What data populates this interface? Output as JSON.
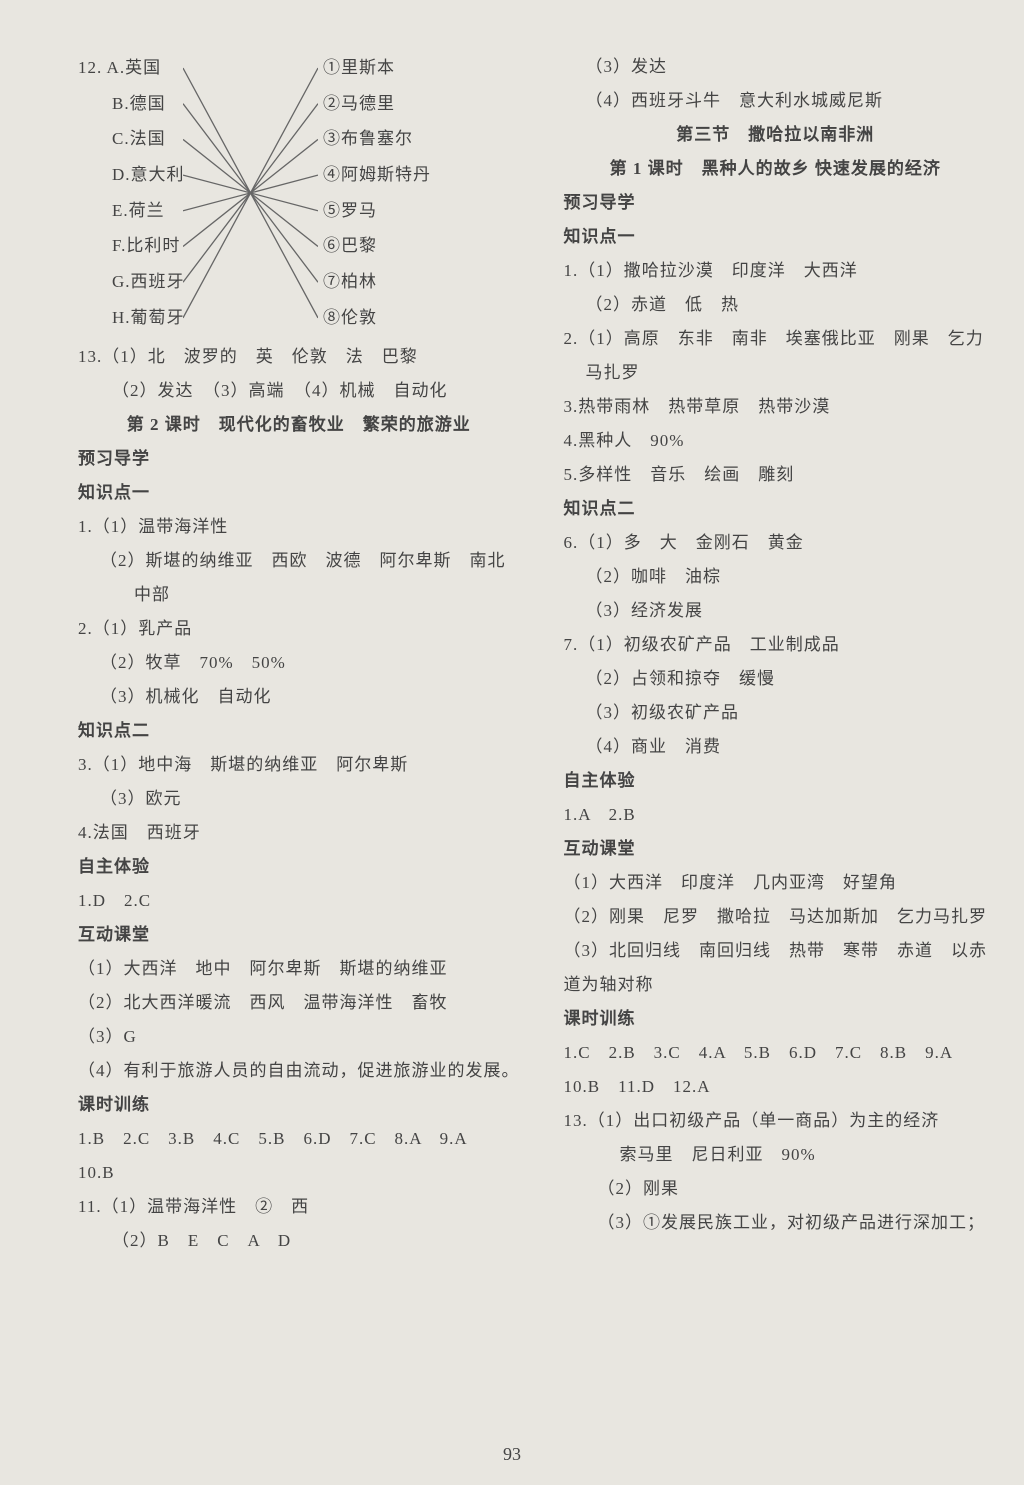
{
  "page_number": "93",
  "colors": {
    "bg": "#e8e6e0",
    "text": "#444444",
    "line": "#666666",
    "divider": "#999999"
  },
  "fontsize": 17,
  "lineheight": 2.0,
  "q12": {
    "left": [
      "12. A.英国",
      "B.德国",
      "C.法国",
      "D.意大利",
      "E.荷兰",
      "F.比利时",
      "G.西班牙",
      "H.葡萄牙"
    ],
    "right": [
      "①里斯本",
      "②马德里",
      "③布鲁塞尔",
      "④阿姆斯特丹",
      "⑤罗马",
      "⑥巴黎",
      "⑦柏林",
      "⑧伦敦"
    ],
    "connections": [
      [
        0,
        7
      ],
      [
        1,
        6
      ],
      [
        2,
        5
      ],
      [
        3,
        4
      ],
      [
        4,
        3
      ],
      [
        5,
        2
      ],
      [
        6,
        1
      ],
      [
        7,
        0
      ]
    ]
  },
  "left_lines": [
    {
      "t": "13.（1）北　波罗的　英　伦敦　法　巴黎"
    },
    {
      "t": "（2）发达　（3）高端　（4）机械　自动化",
      "cls": "indent1"
    },
    {
      "t": "第 2 课时　现代化的畜牧业　繁荣的旅游业",
      "cls": "bold center"
    },
    {
      "t": "预习导学",
      "cls": "bold"
    },
    {
      "t": "知识点一",
      "cls": "bold"
    },
    {
      "t": "1.（1）温带海洋性"
    },
    {
      "t": "（2）斯堪的纳维亚　西欧　波德　阿尔卑斯　南北",
      "cls": "indent3"
    },
    {
      "t": "中部",
      "cls": "indent2"
    },
    {
      "t": "2.（1）乳产品"
    },
    {
      "t": "（2）牧草　70%　50%",
      "cls": "indent3"
    },
    {
      "t": "（3）机械化　自动化",
      "cls": "indent3"
    },
    {
      "t": "知识点二",
      "cls": "bold"
    },
    {
      "t": "3.（1）地中海　斯堪的纳维亚　阿尔卑斯"
    },
    {
      "t": "（3）欧元",
      "cls": "indent3"
    },
    {
      "t": "4.法国　西班牙"
    },
    {
      "t": "自主体验",
      "cls": "bold"
    },
    {
      "t": "1.D　2.C"
    },
    {
      "t": "互动课堂",
      "cls": "bold"
    },
    {
      "t": "（1）大西洋　地中　阿尔卑斯　斯堪的纳维亚"
    },
    {
      "t": "（2）北大西洋暖流　西风　温带海洋性　畜牧"
    },
    {
      "t": "（3）G"
    },
    {
      "t": "（4）有利于旅游人员的自由流动，促进旅游业的发展。"
    },
    {
      "t": "课时训练",
      "cls": "bold"
    },
    {
      "t": "1.B　2.C　3.B　4.C　5.B　6.D　7.C　8.A　9.A"
    },
    {
      "t": "10.B"
    },
    {
      "t": "11.（1）温带海洋性　②　西"
    },
    {
      "t": "（2）B　E　C　A　D",
      "cls": "indent1"
    }
  ],
  "right_lines": [
    {
      "t": "（3）发达",
      "cls": "indent3"
    },
    {
      "t": "（4）西班牙斗牛　意大利水城威尼斯",
      "cls": "indent3"
    },
    {
      "t": "第三节　撒哈拉以南非洲",
      "cls": "bold center"
    },
    {
      "t": "第 1 课时　黑种人的故乡 快速发展的经济",
      "cls": "bold center"
    },
    {
      "t": "预习导学",
      "cls": "bold"
    },
    {
      "t": "知识点一",
      "cls": "bold"
    },
    {
      "t": "1.（1）撒哈拉沙漠　印度洋　大西洋"
    },
    {
      "t": "（2）赤道　低　热",
      "cls": "indent3"
    },
    {
      "t": "2.（1）高原　东非　南非　埃塞俄比亚　刚果　乞力"
    },
    {
      "t": "马扎罗",
      "cls": "indent3"
    },
    {
      "t": "3.热带雨林　热带草原　热带沙漠"
    },
    {
      "t": "4.黑种人　90%"
    },
    {
      "t": "5.多样性　音乐　绘画　雕刻"
    },
    {
      "t": "知识点二",
      "cls": "bold"
    },
    {
      "t": "6.（1）多　大　金刚石　黄金"
    },
    {
      "t": "（2）咖啡　油棕",
      "cls": "indent3"
    },
    {
      "t": "（3）经济发展",
      "cls": "indent3"
    },
    {
      "t": "7.（1）初级农矿产品　工业制成品"
    },
    {
      "t": "（2）占领和掠夺　缓慢",
      "cls": "indent3"
    },
    {
      "t": "（3）初级农矿产品",
      "cls": "indent3"
    },
    {
      "t": "（4）商业　消费",
      "cls": "indent3"
    },
    {
      "t": "自主体验",
      "cls": "bold"
    },
    {
      "t": "1.A　2.B"
    },
    {
      "t": "互动课堂",
      "cls": "bold"
    },
    {
      "t": "（1）大西洋　印度洋　几内亚湾　好望角"
    },
    {
      "t": "（2）刚果　尼罗　撒哈拉　马达加斯加　乞力马扎罗"
    },
    {
      "t": "（3）北回归线　南回归线　热带　寒带　赤道　以赤"
    },
    {
      "t": "道为轴对称"
    },
    {
      "t": "课时训练",
      "cls": "bold"
    },
    {
      "t": "1.C　2.B　3.C　4.A　5.B　6.D　7.C　8.B　9.A"
    },
    {
      "t": "10.B　11.D　12.A"
    },
    {
      "t": "13.（1）出口初级产品（单一商品）为主的经济"
    },
    {
      "t": "索马里　尼日利亚　90%",
      "cls": "indent2"
    },
    {
      "t": "（2）刚果",
      "cls": "indent1"
    },
    {
      "t": "（3）①发展民族工业，对初级产品进行深加工；",
      "cls": "indent1"
    }
  ]
}
